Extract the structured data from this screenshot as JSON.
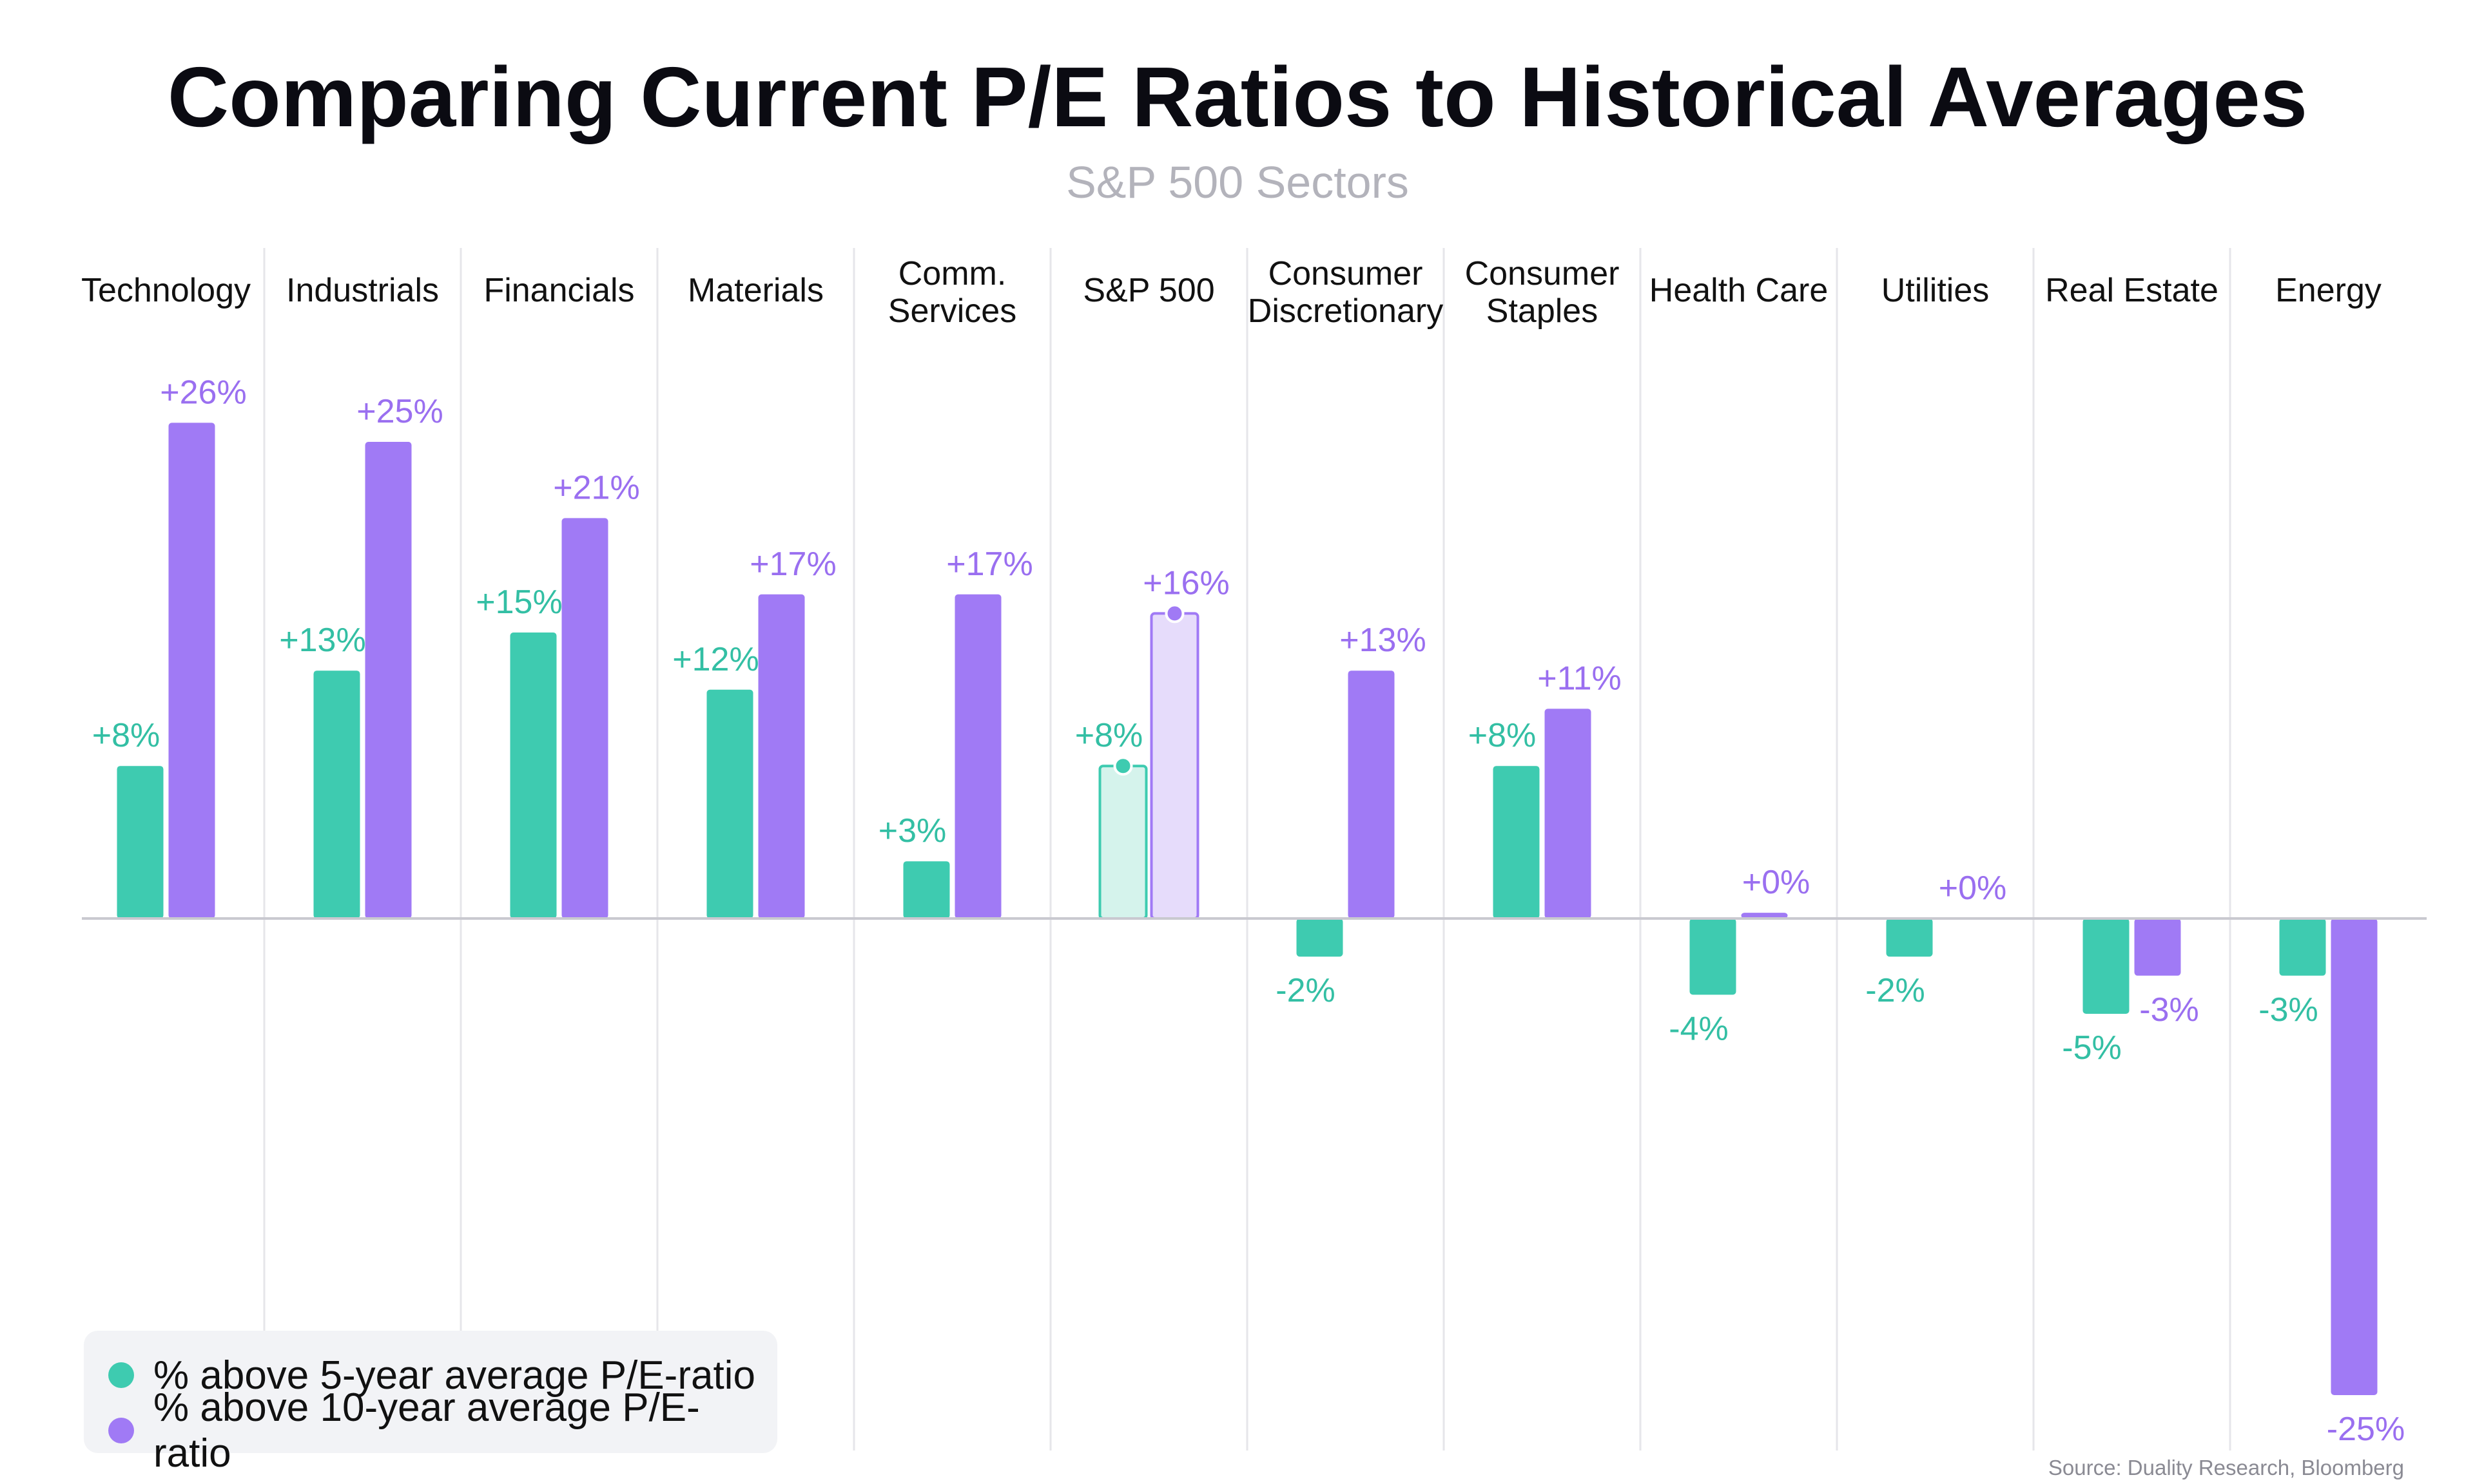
{
  "colors": {
    "five_year": "#3ecbb0",
    "ten_year": "#a07af5",
    "five_year_highlight_fill": "#d5f3ec",
    "ten_year_highlight_fill": "#e6dcfb",
    "five_year_label": "#33bfa4",
    "ten_year_label": "#9a6ff0",
    "grid": "#e6e6ea",
    "zero_line": "#c9c9d0"
  },
  "chart_data": {
    "type": "bar",
    "title": "Comparing Current P/E Ratios to Historical Averages",
    "subtitle": "S&P 500 Sectors",
    "categories": [
      [
        "Technology"
      ],
      [
        "Industrials"
      ],
      [
        "Financials"
      ],
      [
        "Materials"
      ],
      [
        "Comm.",
        "Services"
      ],
      [
        "S&P 500"
      ],
      [
        "Consumer",
        "Discretionary"
      ],
      [
        "Consumer",
        "Staples"
      ],
      [
        "Health Care"
      ],
      [
        "Utilities"
      ],
      [
        "Real Estate"
      ],
      [
        "Energy"
      ]
    ],
    "highlight_category_index": 5,
    "series": [
      {
        "name": "% above 5-year average P/E-ratio",
        "values": [
          8,
          13,
          15,
          12,
          3,
          8,
          -2,
          8,
          -4,
          -2,
          -5,
          -3
        ],
        "labels": [
          "+8%",
          "+13%",
          "+15%",
          "+12%",
          "+3%",
          "+8%",
          "-2%",
          "+8%",
          "-4%",
          "-2%",
          "-5%",
          "-3%"
        ]
      },
      {
        "name": "% above 10-year average P/E-ratio",
        "values": [
          26,
          25,
          21,
          17,
          17,
          16,
          13,
          11,
          0.3,
          0,
          -3,
          -25
        ],
        "labels": [
          "+26%",
          "+25%",
          "+21%",
          "+17%",
          "+17%",
          "+16%",
          "+13%",
          "+11%",
          "+0%",
          "+0%",
          "-3%",
          "-25%"
        ]
      }
    ],
    "ylim": [
      -25,
      26
    ],
    "grid": "vertical separators",
    "legend": "bottom-left",
    "source": "Source: Duality Research, Bloomberg"
  }
}
